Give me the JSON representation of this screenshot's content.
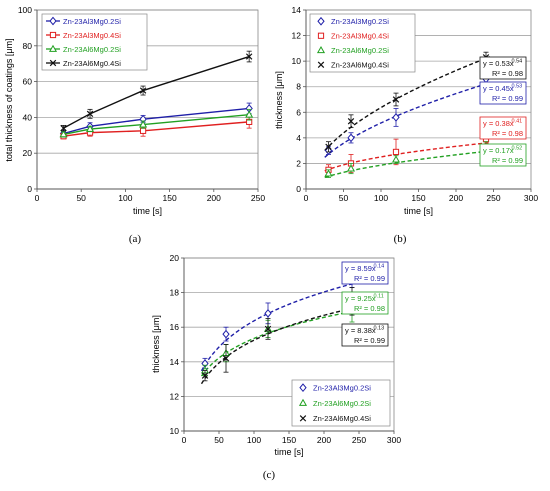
{
  "chart_data": [
    {
      "id": "a",
      "panel_label": "(a)",
      "type": "line",
      "xlabel": "time [s]",
      "ylabel": "total thickness of coatings [μm]",
      "xlim": [
        0,
        250
      ],
      "ylim": [
        0,
        100
      ],
      "xticks": [
        0,
        50,
        100,
        150,
        200,
        250
      ],
      "yticks": [
        0,
        20,
        40,
        60,
        80,
        100
      ],
      "grid": true,
      "legend_position": "top-left",
      "series": [
        {
          "name": "Zn-23Al3Mg0.2Si",
          "color": "#1f1fa8",
          "marker": "diamond",
          "x": [
            30,
            60,
            120,
            240
          ],
          "y": [
            31,
            35,
            39,
            45
          ],
          "err": [
            1.5,
            2,
            2,
            3
          ]
        },
        {
          "name": "Zn-23Al3Mg0.4Si",
          "color": "#e02020",
          "marker": "square",
          "x": [
            30,
            60,
            120,
            240
          ],
          "y": [
            29.5,
            31.5,
            32.5,
            37.5
          ],
          "err": [
            1.5,
            2,
            3,
            3.5
          ]
        },
        {
          "name": "Zn-23Al6Mg0.2Si",
          "color": "#22a022",
          "marker": "triangle",
          "x": [
            30,
            60,
            120,
            240
          ],
          "y": [
            30.5,
            33.5,
            36,
            41.5
          ],
          "err": [
            1.5,
            1.5,
            2,
            3
          ]
        },
        {
          "name": "Zn-23Al6Mg0.4Si",
          "color": "#111111",
          "marker": "cross",
          "x": [
            30,
            60,
            120,
            240
          ],
          "y": [
            34,
            42,
            55,
            74
          ],
          "err": [
            1.5,
            2.5,
            2.5,
            3
          ]
        }
      ]
    },
    {
      "id": "b",
      "panel_label": "(b)",
      "type": "scatter",
      "xlabel": "time [s]",
      "ylabel": "thickness [μm]",
      "xlim": [
        0,
        300
      ],
      "ylim": [
        0,
        14
      ],
      "xticks": [
        0,
        50,
        100,
        150,
        200,
        250,
        300
      ],
      "yticks": [
        0,
        2,
        4,
        6,
        8,
        10,
        12,
        14
      ],
      "grid": true,
      "legend_position": "top-left",
      "series": [
        {
          "name": "Zn-23Al3Mg0.2Si",
          "color": "#1f1fa8",
          "marker": "diamond",
          "x": [
            30,
            60,
            120,
            240
          ],
          "y": [
            3.0,
            4.0,
            5.6,
            8.6
          ],
          "err": [
            0.3,
            0.4,
            0.7,
            0.5
          ],
          "fit": {
            "a": 0.45,
            "b": 0.53,
            "eq": "y = 0.45x",
            "exp": "0.53",
            "r2": "R² = 0.99"
          }
        },
        {
          "name": "Zn-23Al3Mg0.4Si",
          "color": "#e02020",
          "marker": "square",
          "x": [
            30,
            60,
            120,
            240
          ],
          "y": [
            1.5,
            2.0,
            2.9,
            3.9
          ],
          "err": [
            0.4,
            0.7,
            1.0,
            0.5
          ],
          "fit": {
            "a": 0.38,
            "b": 0.41,
            "eq": "y = 0.38x",
            "exp": "0.41",
            "r2": "R² = 0.98"
          }
        },
        {
          "name": "Zn-23Al6Mg0.2Si",
          "color": "#22a022",
          "marker": "triangle",
          "x": [
            30,
            60,
            120,
            240
          ],
          "y": [
            1.2,
            1.6,
            2.3,
            3.2
          ],
          "err": [
            0.3,
            0.4,
            0.3,
            0.5
          ],
          "fit": {
            "a": 0.17,
            "b": 0.52,
            "eq": "y = 0.17x",
            "exp": "0.52",
            "r2": "R² = 0.99"
          }
        },
        {
          "name": "Zn-23Al6Mg0.4Si",
          "color": "#111111",
          "marker": "cross",
          "x": [
            30,
            60,
            120,
            240
          ],
          "y": [
            3.3,
            5.3,
            7.0,
            10.3
          ],
          "err": [
            0.4,
            0.5,
            0.5,
            0.4
          ],
          "fit": {
            "a": 0.53,
            "b": 0.54,
            "eq": "y = 0.53x",
            "exp": "0.54",
            "r2": "R² = 0.98"
          }
        }
      ]
    },
    {
      "id": "c",
      "panel_label": "(c)",
      "type": "scatter",
      "xlabel": "time [s]",
      "ylabel": "thickness [μm]",
      "xlim": [
        0,
        300
      ],
      "ylim": [
        10,
        20
      ],
      "xticks": [
        0,
        50,
        100,
        150,
        200,
        250,
        300
      ],
      "yticks": [
        10,
        12,
        14,
        16,
        18,
        20
      ],
      "grid": true,
      "legend_position": "bottom-right",
      "series": [
        {
          "name": "Zn-23Al3Mg0.2Si",
          "color": "#1f1fa8",
          "marker": "diamond",
          "x": [
            30,
            60,
            120,
            240
          ],
          "y": [
            13.9,
            15.6,
            16.8,
            18.7
          ],
          "err": [
            0.3,
            0.4,
            0.6,
            0.4
          ],
          "fit": {
            "a": 8.59,
            "b": 0.14,
            "eq": "y = 8.59x",
            "exp": "0.14",
            "r2": "R² = 0.99"
          }
        },
        {
          "name": "Zn-23Al6Mg0.2Si",
          "color": "#22a022",
          "marker": "triangle",
          "x": [
            30,
            60,
            120,
            240
          ],
          "y": [
            13.5,
            14.5,
            15.9,
            17.0
          ],
          "err": [
            0.3,
            0.5,
            0.5,
            0.7
          ],
          "fit": {
            "a": 9.25,
            "b": 0.11,
            "eq": "y = 9.25x",
            "exp": "0.11",
            "r2": "R² = 0.98"
          }
        },
        {
          "name": "Zn-23Al6Mg0.4Si",
          "color": "#111111",
          "marker": "cross",
          "x": [
            30,
            60,
            120,
            240
          ],
          "y": [
            13.2,
            14.2,
            15.9,
            17.5
          ],
          "err": [
            0.3,
            0.8,
            0.6,
            0.8
          ],
          "fit": {
            "a": 8.38,
            "b": 0.13,
            "eq": "y = 8.38x",
            "exp": "0.13",
            "r2": "R² = 0.99"
          }
        }
      ]
    }
  ]
}
